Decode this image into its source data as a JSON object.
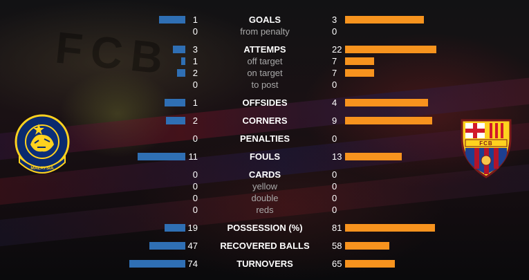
{
  "stats": [
    {
      "label": "GOALS",
      "kind": "main",
      "home": "1",
      "away": "3",
      "home_bar": 1,
      "away_bar": 3
    },
    {
      "label": "from penalty",
      "kind": "sub",
      "home": "0",
      "away": "0",
      "home_bar": 0,
      "away_bar": 0
    },
    {
      "label": "ATTEMPS",
      "kind": "main",
      "home": "3",
      "away": "22",
      "home_bar": 3,
      "away_bar": 22
    },
    {
      "label": "off target",
      "kind": "sub",
      "home": "1",
      "away": "7",
      "home_bar": 1,
      "away_bar": 7
    },
    {
      "label": "on target",
      "kind": "sub",
      "home": "2",
      "away": "7",
      "home_bar": 2,
      "away_bar": 7
    },
    {
      "label": "to post",
      "kind": "sub",
      "home": "0",
      "away": "0",
      "home_bar": 0,
      "away_bar": 0
    },
    {
      "label": "OFFSIDES",
      "kind": "main",
      "home": "1",
      "away": "4",
      "home_bar": 1,
      "away_bar": 4
    },
    {
      "label": "CORNERS",
      "kind": "main",
      "home": "2",
      "away": "9",
      "home_bar": 2,
      "away_bar": 9
    },
    {
      "label": "PENALTIES",
      "kind": "main",
      "home": "0",
      "away": "0",
      "home_bar": 0,
      "away_bar": 0
    },
    {
      "label": "FOULS",
      "kind": "main",
      "home": "11",
      "away": "13",
      "home_bar": 11,
      "away_bar": 13
    },
    {
      "label": "CARDS",
      "kind": "main",
      "home": "0",
      "away": "0",
      "home_bar": 0,
      "away_bar": 0
    },
    {
      "label": "yellow",
      "kind": "sub",
      "home": "0",
      "away": "0",
      "home_bar": 0,
      "away_bar": 0
    },
    {
      "label": "double",
      "kind": "sub",
      "home": "0",
      "away": "0",
      "home_bar": 0,
      "away_bar": 0
    },
    {
      "label": "reds",
      "kind": "sub",
      "home": "0",
      "away": "0",
      "home_bar": 0,
      "away_bar": 0
    },
    {
      "label": "POSSESSION (%)",
      "kind": "main",
      "home": "19",
      "away": "81",
      "home_bar": 19,
      "away_bar": 81
    },
    {
      "label": "RECOVERED BALLS",
      "kind": "main",
      "home": "47",
      "away": "58",
      "home_bar": 47,
      "away_bar": 58
    },
    {
      "label": "TURNOVERS",
      "kind": "main",
      "home": "74",
      "away": "65",
      "home_bar": 74,
      "away_bar": 65
    }
  ],
  "colors": {
    "home_bar": "#2f6fb4",
    "away_bar": "#f7931e",
    "main_label": "#ffffff",
    "sub_label": "#a9a9a9"
  },
  "logos": {
    "home": {
      "icon": "malaysia-fa-crest-icon",
      "text": "PERSATUAN BOLASEPAK MALAYSIA"
    },
    "away": {
      "icon": "fc-barcelona-crest-icon",
      "text": "FCB"
    }
  },
  "background_text": "FCB"
}
